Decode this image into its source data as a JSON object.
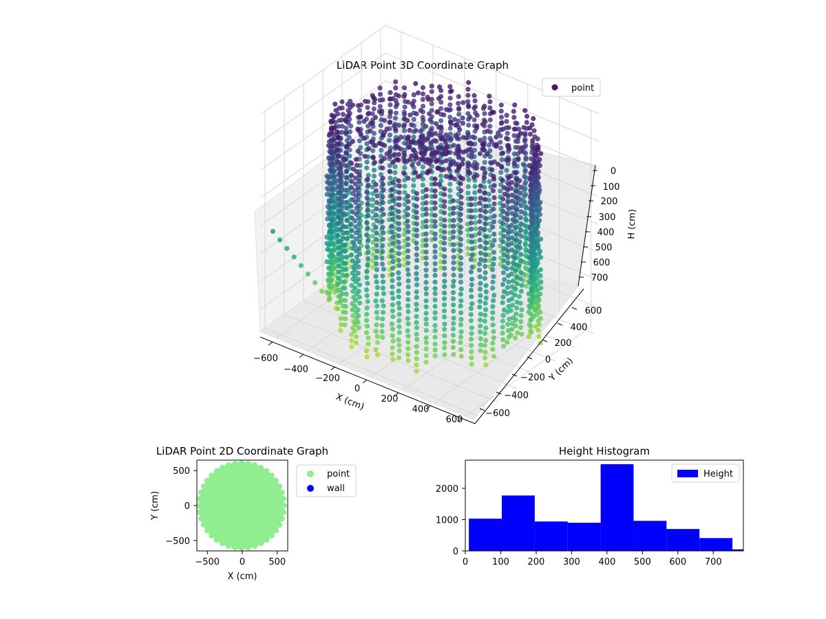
{
  "chart_data": [
    {
      "type": "scatter",
      "title": "LiDAR Point 3D Coordinate Graph",
      "xlabel": "X (cm)",
      "ylabel": "Y (cm)",
      "zlabel": "H (cm)",
      "xlim": [
        -700,
        650
      ],
      "ylim": [
        -650,
        650
      ],
      "zlim": [
        0,
        780
      ],
      "z_inverted": true,
      "x_ticks": [
        -600,
        -400,
        -200,
        0,
        200,
        400,
        600
      ],
      "y_ticks": [
        -600,
        -400,
        -200,
        0,
        200,
        400,
        600
      ],
      "z_ticks": [
        0,
        100,
        200,
        300,
        400,
        500,
        600,
        700
      ],
      "x_tick_labels": [
        "−600",
        "−400",
        "−200",
        "0",
        "200",
        "400",
        "600"
      ],
      "y_tick_labels": [
        "−600",
        "−400",
        "−200",
        "0",
        "200",
        "400",
        "600"
      ],
      "z_tick_labels": [
        "0",
        "100",
        "200",
        "300",
        "400",
        "500",
        "600",
        "700"
      ],
      "colormap": "viridis",
      "color_by": "height",
      "grid": true,
      "legend": {
        "placement": "top-right",
        "entries": [
          {
            "label": "point",
            "color": "#46156e"
          }
        ]
      },
      "series": [
        {
          "name": "point",
          "shape": "circular wall of vertical scan columns around the sensor",
          "wall_radius_cm": 560,
          "height_range_cm": [
            0,
            780
          ],
          "x_range_cm": [
            -650,
            650
          ],
          "y_range_cm": [
            -600,
            600
          ]
        }
      ]
    },
    {
      "type": "scatter",
      "title": "LiDAR Point 2D Coordinate Graph",
      "xlabel": "X (cm)",
      "ylabel": "Y (cm)",
      "xlim": [
        -650,
        650
      ],
      "ylim": [
        -650,
        650
      ],
      "x_ticks": [
        -500,
        0,
        500
      ],
      "y_ticks": [
        -500,
        0,
        500
      ],
      "x_tick_labels": [
        "−500",
        "0",
        "500"
      ],
      "y_tick_labels": [
        "−500",
        "0",
        "500"
      ],
      "legend": {
        "placement": "outside-right",
        "entries": [
          {
            "label": "point",
            "color": "#90ee90"
          },
          {
            "label": "wall",
            "color": "#0000ff"
          }
        ]
      },
      "series": [
        {
          "name": "point",
          "color": "#90ee90",
          "shape": "filled disk",
          "center": [
            -10,
            0
          ],
          "radius_cm": 610
        },
        {
          "name": "wall",
          "color": "#0000ff",
          "points": []
        }
      ]
    },
    {
      "type": "bar",
      "title": "Height Histogram",
      "xlabel": "",
      "ylabel": "",
      "xlim": [
        0,
        785
      ],
      "ylim": [
        0,
        2900
      ],
      "x_ticks": [
        0,
        100,
        200,
        300,
        400,
        500,
        600,
        700
      ],
      "y_ticks": [
        0,
        1000,
        2000
      ],
      "x_tick_labels": [
        "0",
        "100",
        "200",
        "300",
        "400",
        "500",
        "600",
        "700"
      ],
      "y_tick_labels": [
        "0",
        "1000",
        "2000"
      ],
      "color": "#0000ff",
      "legend": {
        "placement": "top-right",
        "entries": [
          {
            "label": "Height",
            "color": "#0000ff"
          }
        ]
      },
      "bin_edges": [
        10,
        103,
        196,
        289,
        382,
        475,
        568,
        661,
        754,
        847
      ],
      "values": [
        1030,
        1770,
        940,
        900,
        2770,
        960,
        700,
        410,
        50
      ]
    }
  ]
}
